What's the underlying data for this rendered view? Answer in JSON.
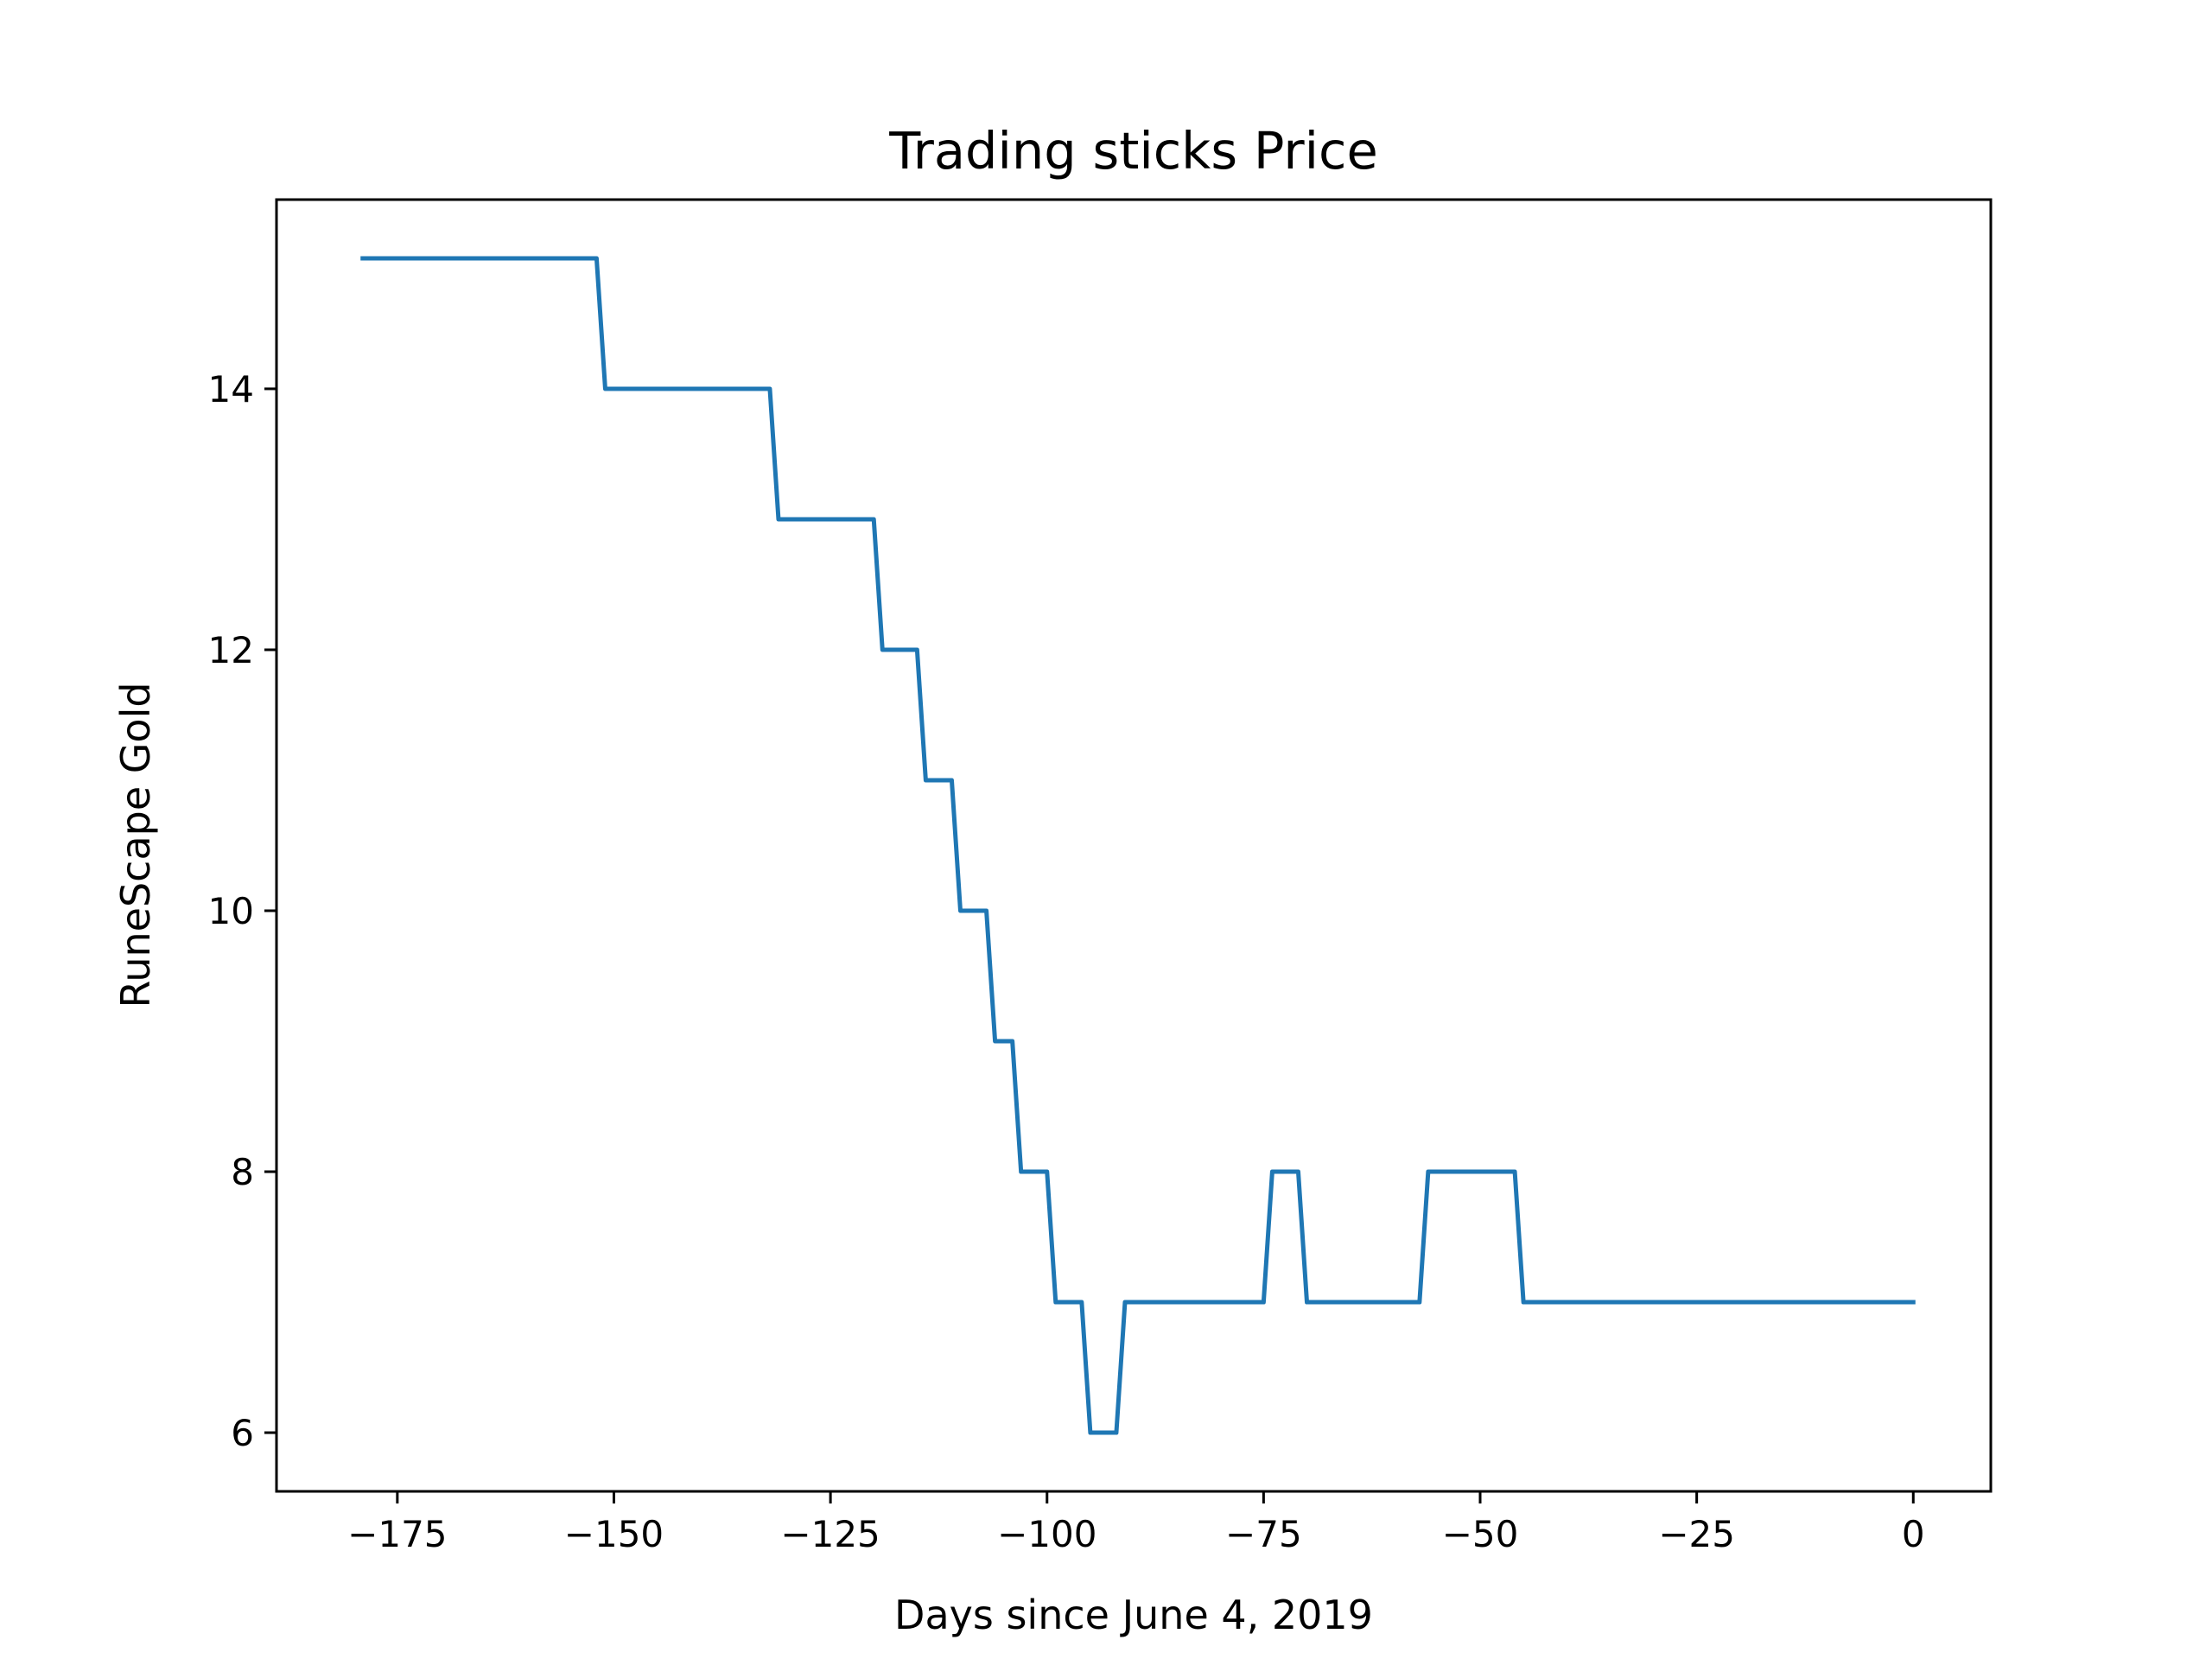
{
  "chart_data": {
    "type": "line",
    "title": "Trading sticks Price",
    "xlabel": "Days since June 4, 2019",
    "ylabel": "RuneScape Gold",
    "xlim": [
      -188.95,
      8.95
    ],
    "ylim": [
      5.55,
      15.45
    ],
    "xticks": [
      -175,
      -150,
      -125,
      -100,
      -75,
      -50,
      -25,
      0
    ],
    "xtick_labels": [
      "−175",
      "−150",
      "−125",
      "−100",
      "−75",
      "−50",
      "−25",
      "0"
    ],
    "yticks": [
      6,
      8,
      10,
      12,
      14
    ],
    "ytick_labels": [
      "6",
      "8",
      "10",
      "12",
      "14"
    ],
    "grid": false,
    "colors": {
      "line": "#1f77b4",
      "axes": "#000000"
    },
    "series": [
      {
        "x": [
          -179,
          -152,
          -151,
          -132,
          -131,
          -120,
          -119,
          -115,
          -114,
          -111,
          -110,
          -107,
          -106,
          -104,
          -103,
          -100,
          -99,
          -96,
          -95,
          -92,
          -91,
          -75,
          -74,
          -71,
          -70,
          -57,
          -56,
          -46,
          -45,
          0
        ],
        "y": [
          15,
          15,
          14,
          14,
          13,
          13,
          12,
          12,
          11,
          11,
          10,
          10,
          9,
          9,
          8,
          8,
          7,
          7,
          6,
          6,
          7,
          7,
          8,
          8,
          7,
          7,
          8,
          8,
          7,
          7
        ]
      }
    ]
  }
}
